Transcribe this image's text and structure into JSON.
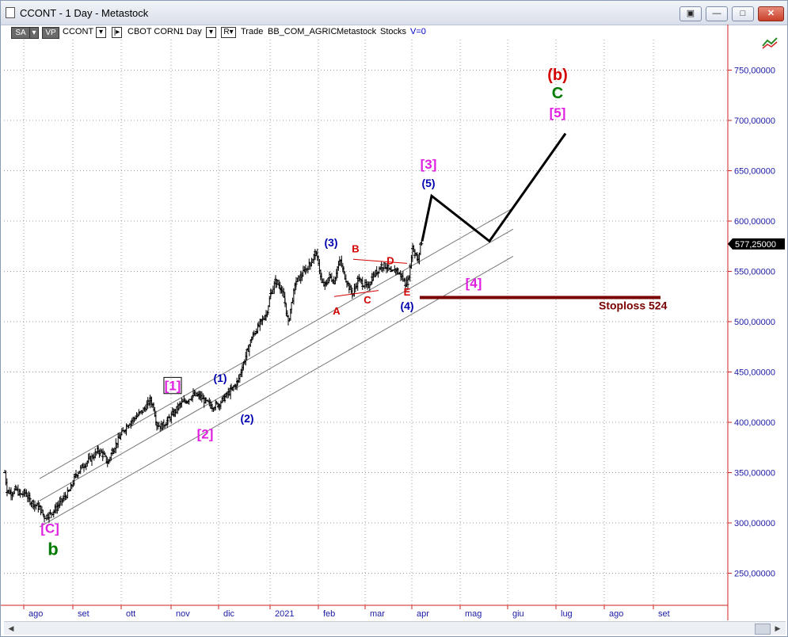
{
  "window": {
    "title": "CCONT - 1 Day - Metastock",
    "buttons": [
      "▣",
      "—",
      "□",
      "✕"
    ]
  },
  "toolbar": {
    "sa": "SA",
    "vp": "VP",
    "symbol": "CCONT",
    "exchange_name": "CBOT CORN",
    "period": "1 Day",
    "r_button": "R▾",
    "trade": "Trade",
    "group": "BB_COM_AGRIC",
    "source": "Metastock",
    "category": "Stocks",
    "volume": "V=0"
  },
  "chart_data": {
    "type": "ohlc",
    "price_axis": {
      "min": 220,
      "max": 790,
      "ticks": [
        250,
        300,
        350,
        400,
        450,
        500,
        550,
        600,
        650,
        700,
        750
      ],
      "tick_labels": [
        "250,00000",
        "300,00000",
        "350,00000",
        "400,00000",
        "450,00000",
        "500,00000",
        "550,00000",
        "600,00000",
        "650,00000",
        "700,00000",
        "750,00000"
      ],
      "last_price": 577.25,
      "last_price_label": "577,25000"
    },
    "time_axis": {
      "months": [
        "ago",
        "set",
        "ott",
        "nov",
        "dic",
        "2021",
        "feb",
        "mar",
        "apr",
        "mag",
        "giu",
        "lug",
        "ago",
        "set"
      ],
      "month_start_days": [
        24,
        86,
        147,
        210,
        270,
        335,
        396,
        455,
        514,
        575,
        635,
        696,
        757,
        819
      ]
    },
    "price_path": [
      [
        0,
        350
      ],
      [
        3,
        332
      ],
      [
        8,
        330
      ],
      [
        14,
        333
      ],
      [
        20,
        328
      ],
      [
        26,
        330
      ],
      [
        32,
        322
      ],
      [
        38,
        318
      ],
      [
        44,
        315
      ],
      [
        50,
        306
      ],
      [
        56,
        308
      ],
      [
        62,
        312
      ],
      [
        68,
        318
      ],
      [
        75,
        325
      ],
      [
        82,
        332
      ],
      [
        90,
        348
      ],
      [
        100,
        358
      ],
      [
        110,
        365
      ],
      [
        118,
        372
      ],
      [
        124,
        368
      ],
      [
        130,
        360
      ],
      [
        136,
        372
      ],
      [
        145,
        385
      ],
      [
        155,
        398
      ],
      [
        165,
        405
      ],
      [
        175,
        412
      ],
      [
        184,
        422
      ],
      [
        188,
        415
      ],
      [
        192,
        398
      ],
      [
        198,
        396
      ],
      [
        206,
        402
      ],
      [
        214,
        410
      ],
      [
        222,
        418
      ],
      [
        230,
        422
      ],
      [
        238,
        427
      ],
      [
        246,
        426
      ],
      [
        254,
        420
      ],
      [
        262,
        416
      ],
      [
        270,
        418
      ],
      [
        278,
        425
      ],
      [
        286,
        432
      ],
      [
        294,
        440
      ],
      [
        300,
        455
      ],
      [
        306,
        470
      ],
      [
        312,
        484
      ],
      [
        318,
        492
      ],
      [
        324,
        500
      ],
      [
        330,
        507
      ],
      [
        336,
        528
      ],
      [
        342,
        540
      ],
      [
        348,
        535
      ],
      [
        354,
        518
      ],
      [
        358,
        498
      ],
      [
        362,
        518
      ],
      [
        368,
        540
      ],
      [
        374,
        545
      ],
      [
        380,
        552
      ],
      [
        386,
        558
      ],
      [
        392,
        568
      ],
      [
        396,
        560
      ],
      [
        400,
        538
      ],
      [
        405,
        536
      ],
      [
        410,
        545
      ],
      [
        416,
        540
      ],
      [
        420,
        554
      ],
      [
        424,
        560
      ],
      [
        428,
        548
      ],
      [
        432,
        540
      ],
      [
        436,
        532
      ],
      [
        440,
        528
      ],
      [
        446,
        542
      ],
      [
        452,
        538
      ],
      [
        458,
        534
      ],
      [
        464,
        544
      ],
      [
        470,
        550
      ],
      [
        476,
        556
      ],
      [
        482,
        555
      ],
      [
        488,
        548
      ],
      [
        494,
        552
      ],
      [
        500,
        546
      ],
      [
        506,
        538
      ],
      [
        509,
        540
      ],
      [
        512,
        555
      ],
      [
        515,
        575
      ],
      [
        518,
        568
      ],
      [
        522,
        560
      ],
      [
        525,
        578
      ],
      [
        527,
        580
      ]
    ],
    "channel_lines": [
      {
        "start": [
          44,
          344
        ],
        "end": [
          642,
          613
        ]
      },
      {
        "start": [
          44,
          322
        ],
        "end": [
          642,
          592
        ]
      },
      {
        "start": [
          44,
          296
        ],
        "end": [
          642,
          565
        ]
      }
    ],
    "projection_path": [
      [
        527,
        580
      ],
      [
        539,
        625
      ],
      [
        612,
        580
      ],
      [
        708,
        687
      ]
    ],
    "triangle_lines": [
      {
        "start": [
          416,
          525
        ],
        "end": [
          472,
          531
        ]
      },
      {
        "start": [
          440,
          562
        ],
        "end": [
          508,
          558
        ]
      }
    ],
    "stoploss": {
      "price": 524,
      "label": "Stoploss 524",
      "day_start": 524,
      "day_end": 790
    },
    "annotations": [
      {
        "text": "(b)",
        "day": 698,
        "price": 740,
        "color": "#d40000",
        "size": 20
      },
      {
        "text": "C",
        "day": 698,
        "price": 722,
        "color": "#007a00",
        "size": 20
      },
      {
        "text": "[5]",
        "day": 698,
        "price": 703,
        "color": "#e020e0",
        "size": 17
      },
      {
        "text": "[3]",
        "day": 535,
        "price": 652,
        "color": "#e020e0",
        "size": 17
      },
      {
        "text": "(5)",
        "day": 535,
        "price": 634,
        "color": "#0000b0",
        "size": 14
      },
      {
        "text": "(3)",
        "day": 412,
        "price": 575,
        "color": "#0000b0",
        "size": 14
      },
      {
        "text": "B",
        "day": 443,
        "price": 569,
        "color": "#d40000",
        "size": 13
      },
      {
        "text": "D",
        "day": 487,
        "price": 557,
        "color": "#d40000",
        "size": 13
      },
      {
        "text": "A",
        "day": 419,
        "price": 507,
        "color": "#d40000",
        "size": 13
      },
      {
        "text": "C",
        "day": 458,
        "price": 518,
        "color": "#d40000",
        "size": 13
      },
      {
        "text": "E",
        "day": 508,
        "price": 526,
        "color": "#d40000",
        "size": 13
      },
      {
        "text": "(4)",
        "day": 508,
        "price": 512,
        "color": "#0000b0",
        "size": 14
      },
      {
        "text": "[4]",
        "day": 592,
        "price": 534,
        "color": "#e020e0",
        "size": 17
      },
      {
        "text": "[1]",
        "day": 212,
        "price": 432,
        "color": "#e020e0",
        "size": 17,
        "boxed": true
      },
      {
        "text": "(1)",
        "day": 272,
        "price": 440,
        "color": "#0000b0",
        "size": 14
      },
      {
        "text": "[2]",
        "day": 253,
        "price": 384,
        "color": "#e020e0",
        "size": 17
      },
      {
        "text": "(2)",
        "day": 306,
        "price": 400,
        "color": "#0000b0",
        "size": 14
      },
      {
        "text": "[C]",
        "day": 57,
        "price": 290,
        "color": "#e020e0",
        "size": 17
      },
      {
        "text": "b",
        "day": 61,
        "price": 268,
        "color": "#007a00",
        "size": 22
      }
    ]
  }
}
